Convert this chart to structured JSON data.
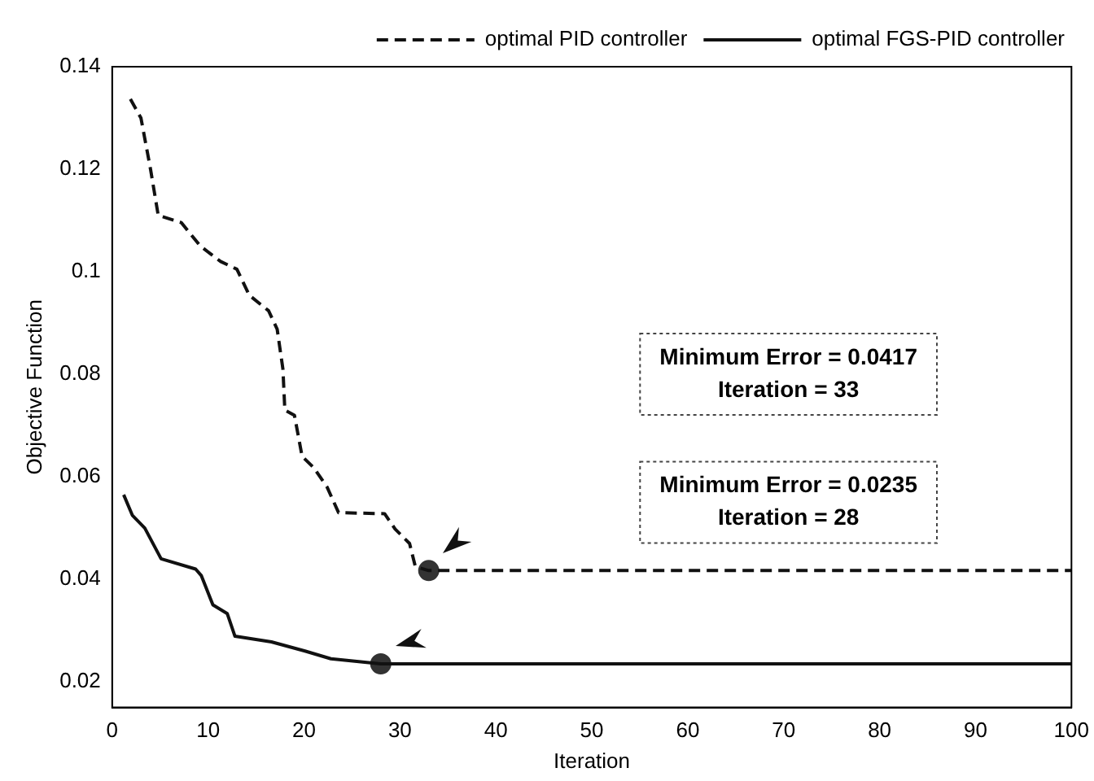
{
  "chart_data": {
    "type": "line",
    "xlabel": "Iteration",
    "ylabel": "Objective Function",
    "xlim": [
      0,
      100
    ],
    "ylim": [
      0.015,
      0.14
    ],
    "xticks": [
      0,
      10,
      20,
      30,
      40,
      50,
      60,
      70,
      80,
      90,
      100
    ],
    "yticks": [
      0.02,
      0.04,
      0.06,
      0.08,
      0.1,
      0.12,
      0.14
    ],
    "grid": false,
    "legend": "top right",
    "marker": "none",
    "series": [
      {
        "name": "optimal PID controller",
        "color": "#111111",
        "line_style": "dashed",
        "x": [
          1.9,
          3,
          4,
          4.8,
          7.2,
          9.2,
          11.3,
          13,
          14.3,
          16.3,
          17.2,
          17.8,
          18,
          19,
          19.8,
          21,
          22.4,
          23.6,
          28.4,
          29.5,
          31,
          31.6,
          33,
          100
        ],
        "values": [
          0.1337,
          0.13,
          0.12,
          0.111,
          0.1096,
          0.105,
          0.102,
          0.1005,
          0.0954,
          0.0924,
          0.0888,
          0.081,
          0.073,
          0.072,
          0.064,
          0.0618,
          0.058,
          0.053,
          0.0528,
          0.0498,
          0.047,
          0.0425,
          0.0417,
          0.0417
        ]
      },
      {
        "name": "optimal FGS-PID controller",
        "color": "#111111",
        "line_style": "solid",
        "x": [
          1.2,
          2.1,
          3.4,
          5.1,
          8.7,
          9.3,
          10.5,
          12,
          12.8,
          16.6,
          20.1,
          22.8,
          28,
          100
        ],
        "values": [
          0.0565,
          0.0525,
          0.05,
          0.044,
          0.042,
          0.0407,
          0.035,
          0.0333,
          0.0289,
          0.0278,
          0.026,
          0.0245,
          0.0235,
          0.0235
        ]
      },
      {
        "type": "scatter",
        "marker": "circle",
        "color": "#333333",
        "x": [
          33,
          28
        ],
        "values": [
          0.0417,
          0.0235
        ]
      }
    ],
    "annotations": [
      "Minimum Error = 0.0417",
      "Iteration = 33",
      "Minimum Error = 0.0235",
      "Iteration = 28"
    ]
  }
}
